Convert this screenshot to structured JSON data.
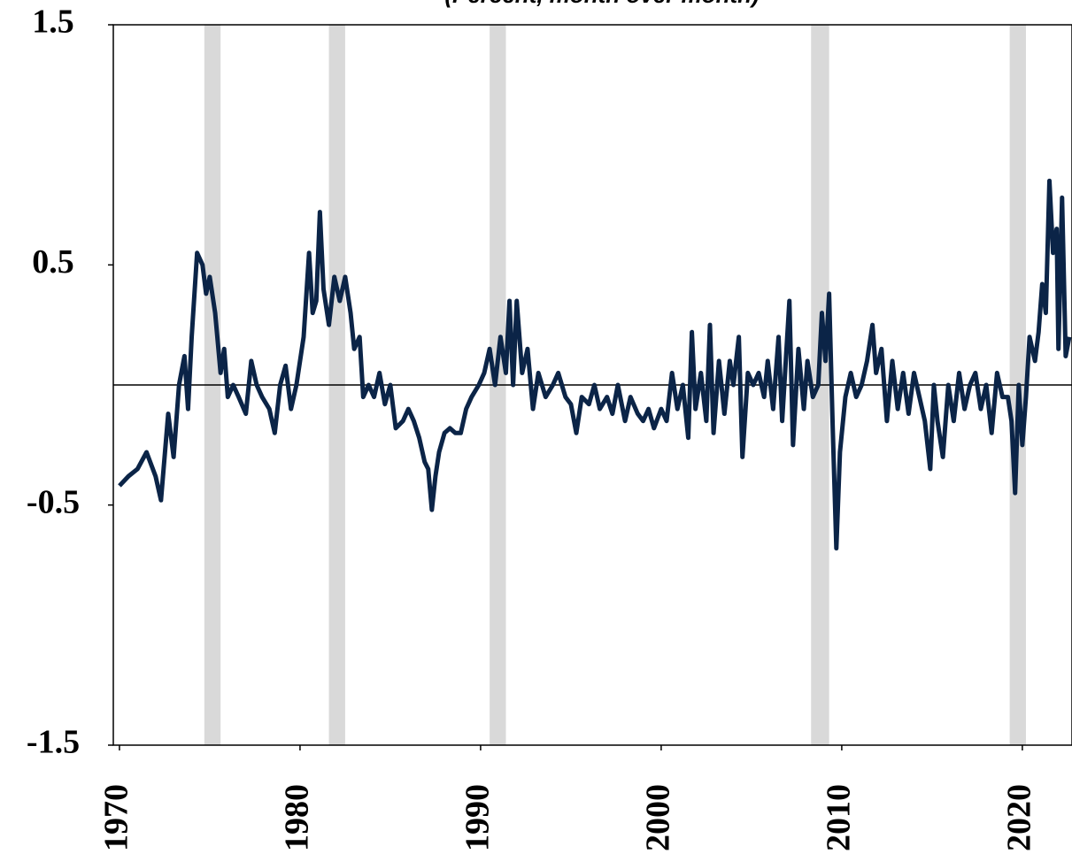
{
  "chart_data": {
    "type": "line",
    "subtitle": "(Percent, month over month)",
    "xlim": [
      1969.66,
      2022.75
    ],
    "xticks": [
      1970,
      1980,
      1990,
      2000,
      2010,
      2020
    ],
    "ylim": [
      -1.5,
      1.5
    ],
    "yticks": [
      1.5,
      0.5,
      -0.5,
      -1.5
    ],
    "shaded_periods": [
      [
        1974.7,
        1975.6
      ],
      [
        1981.6,
        1982.5
      ],
      [
        1990.5,
        1991.4
      ],
      [
        2008.3,
        2009.3
      ],
      [
        2019.3,
        2020.2
      ]
    ],
    "shade_color": "#d9d9d9",
    "series": [
      {
        "color": "#0b2447",
        "x": [
          1970.0,
          1970.5,
          1971.0,
          1971.5,
          1972.0,
          1972.3,
          1972.7,
          1973.0,
          1973.3,
          1973.6,
          1973.8,
          1974.0,
          1974.3,
          1974.6,
          1974.8,
          1975.0,
          1975.3,
          1975.6,
          1975.8,
          1976.0,
          1976.3,
          1976.6,
          1977.0,
          1977.3,
          1977.6,
          1977.9,
          1978.3,
          1978.6,
          1978.9,
          1979.2,
          1979.5,
          1979.8,
          1980.2,
          1980.5,
          1980.7,
          1980.9,
          1981.1,
          1981.3,
          1981.6,
          1981.9,
          1982.2,
          1982.5,
          1982.8,
          1983.0,
          1983.3,
          1983.5,
          1983.8,
          1984.1,
          1984.4,
          1984.7,
          1985.0,
          1985.3,
          1985.7,
          1986.0,
          1986.3,
          1986.6,
          1986.9,
          1987.1,
          1987.3,
          1987.5,
          1987.7,
          1988.0,
          1988.3,
          1988.6,
          1988.9,
          1989.2,
          1989.5,
          1989.9,
          1990.2,
          1990.5,
          1990.8,
          1991.1,
          1991.4,
          1991.6,
          1991.8,
          1992.0,
          1992.3,
          1992.6,
          1992.9,
          1993.2,
          1993.6,
          1994.0,
          1994.3,
          1994.7,
          1995.0,
          1995.3,
          1995.6,
          1996.0,
          1996.3,
          1996.6,
          1997.0,
          1997.3,
          1997.6,
          1998.0,
          1998.3,
          1998.7,
          1999.0,
          1999.3,
          1999.6,
          2000.0,
          2000.3,
          2000.6,
          2000.9,
          2001.2,
          2001.5,
          2001.7,
          2001.9,
          2002.2,
          2002.5,
          2002.7,
          2002.9,
          2003.2,
          2003.5,
          2003.8,
          2004.0,
          2004.3,
          2004.5,
          2004.8,
          2005.1,
          2005.4,
          2005.7,
          2005.9,
          2006.2,
          2006.5,
          2006.7,
          2006.9,
          2007.1,
          2007.3,
          2007.6,
          2007.9,
          2008.1,
          2008.4,
          2008.7,
          2008.9,
          2009.1,
          2009.3,
          2009.5,
          2009.7,
          2009.9,
          2010.2,
          2010.5,
          2010.8,
          2011.1,
          2011.4,
          2011.7,
          2011.9,
          2012.2,
          2012.5,
          2012.8,
          2013.1,
          2013.4,
          2013.7,
          2014.0,
          2014.3,
          2014.6,
          2014.9,
          2015.1,
          2015.3,
          2015.6,
          2015.9,
          2016.2,
          2016.5,
          2016.8,
          2017.1,
          2017.4,
          2017.7,
          2018.0,
          2018.3,
          2018.6,
          2018.9,
          2019.2,
          2019.4,
          2019.6,
          2019.8,
          2020.0,
          2020.2,
          2020.4,
          2020.7,
          2020.9,
          2021.1,
          2021.3,
          2021.5,
          2021.7,
          2021.9,
          2022.0,
          2022.2,
          2022.4,
          2022.6
        ],
        "values": [
          -0.42,
          -0.38,
          -0.35,
          -0.28,
          -0.38,
          -0.48,
          -0.12,
          -0.3,
          0.0,
          0.12,
          -0.1,
          0.2,
          0.55,
          0.5,
          0.38,
          0.45,
          0.3,
          0.05,
          0.15,
          -0.05,
          0.0,
          -0.05,
          -0.12,
          0.1,
          0.0,
          -0.05,
          -0.1,
          -0.2,
          0.0,
          0.08,
          -0.1,
          0.0,
          0.2,
          0.55,
          0.3,
          0.35,
          0.72,
          0.4,
          0.25,
          0.45,
          0.35,
          0.45,
          0.3,
          0.15,
          0.2,
          -0.05,
          0.0,
          -0.05,
          0.05,
          -0.08,
          0.0,
          -0.18,
          -0.15,
          -0.1,
          -0.15,
          -0.22,
          -0.32,
          -0.35,
          -0.52,
          -0.38,
          -0.28,
          -0.2,
          -0.18,
          -0.2,
          -0.2,
          -0.1,
          -0.05,
          0.0,
          0.05,
          0.15,
          0.0,
          0.2,
          0.05,
          0.35,
          0.0,
          0.35,
          0.05,
          0.15,
          -0.1,
          0.05,
          -0.05,
          0.0,
          0.05,
          -0.05,
          -0.08,
          -0.2,
          -0.05,
          -0.08,
          0.0,
          -0.1,
          -0.05,
          -0.12,
          0.0,
          -0.15,
          -0.05,
          -0.12,
          -0.15,
          -0.1,
          -0.18,
          -0.1,
          -0.15,
          0.05,
          -0.1,
          0.0,
          -0.22,
          0.22,
          -0.1,
          0.05,
          -0.15,
          0.25,
          -0.2,
          0.1,
          -0.12,
          0.1,
          0.0,
          0.2,
          -0.3,
          0.05,
          0.0,
          0.05,
          -0.05,
          0.1,
          -0.1,
          0.2,
          -0.15,
          0.1,
          0.35,
          -0.25,
          0.15,
          -0.1,
          0.1,
          -0.05,
          0.0,
          0.3,
          0.1,
          0.38,
          -0.18,
          -0.68,
          -0.28,
          -0.05,
          0.05,
          -0.05,
          0.0,
          0.1,
          0.25,
          0.05,
          0.15,
          -0.15,
          0.1,
          -0.1,
          0.05,
          -0.12,
          0.05,
          -0.05,
          -0.15,
          -0.35,
          0.0,
          -0.15,
          -0.3,
          0.0,
          -0.15,
          0.05,
          -0.1,
          0.0,
          0.05,
          -0.1,
          0.0,
          -0.2,
          0.05,
          -0.05,
          -0.05,
          -0.15,
          -0.45,
          0.0,
          -0.25,
          -0.05,
          0.2,
          0.1,
          0.22,
          0.42,
          0.3,
          0.85,
          0.55,
          0.65,
          0.15,
          0.78,
          0.12,
          0.2
        ]
      }
    ]
  }
}
